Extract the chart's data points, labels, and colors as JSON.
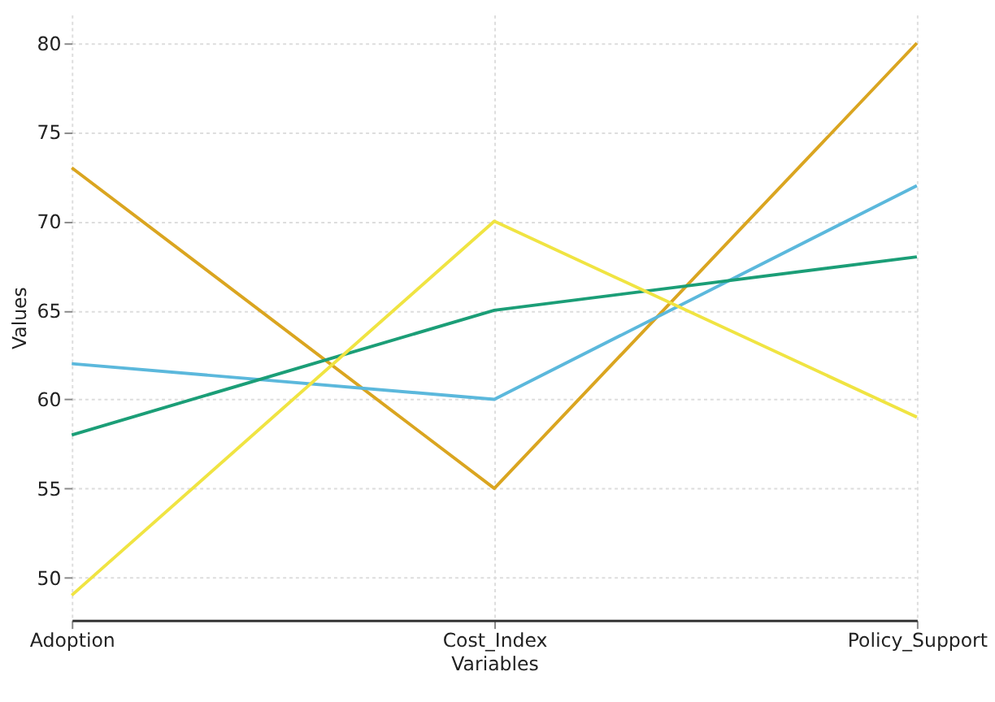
{
  "chart_data": {
    "type": "line",
    "xlabel": "Variables",
    "ylabel": "Values",
    "categories": [
      "Adoption",
      "Cost_Index",
      "Policy_Support"
    ],
    "series": [
      {
        "color": "#daa520",
        "values": [
          73,
          55,
          80
        ]
      },
      {
        "color": "#5bb8dc",
        "values": [
          62,
          60,
          72
        ]
      },
      {
        "color": "#1b9e77",
        "values": [
          58,
          65,
          68
        ]
      },
      {
        "color": "#f0e442",
        "values": [
          49,
          70,
          59
        ]
      }
    ],
    "ylim": [
      47.6,
      81.6
    ],
    "yticks": [
      50,
      55,
      60,
      65,
      70,
      75,
      80
    ],
    "grid": true,
    "legend": false,
    "marker": "none",
    "line_style": "solid"
  }
}
